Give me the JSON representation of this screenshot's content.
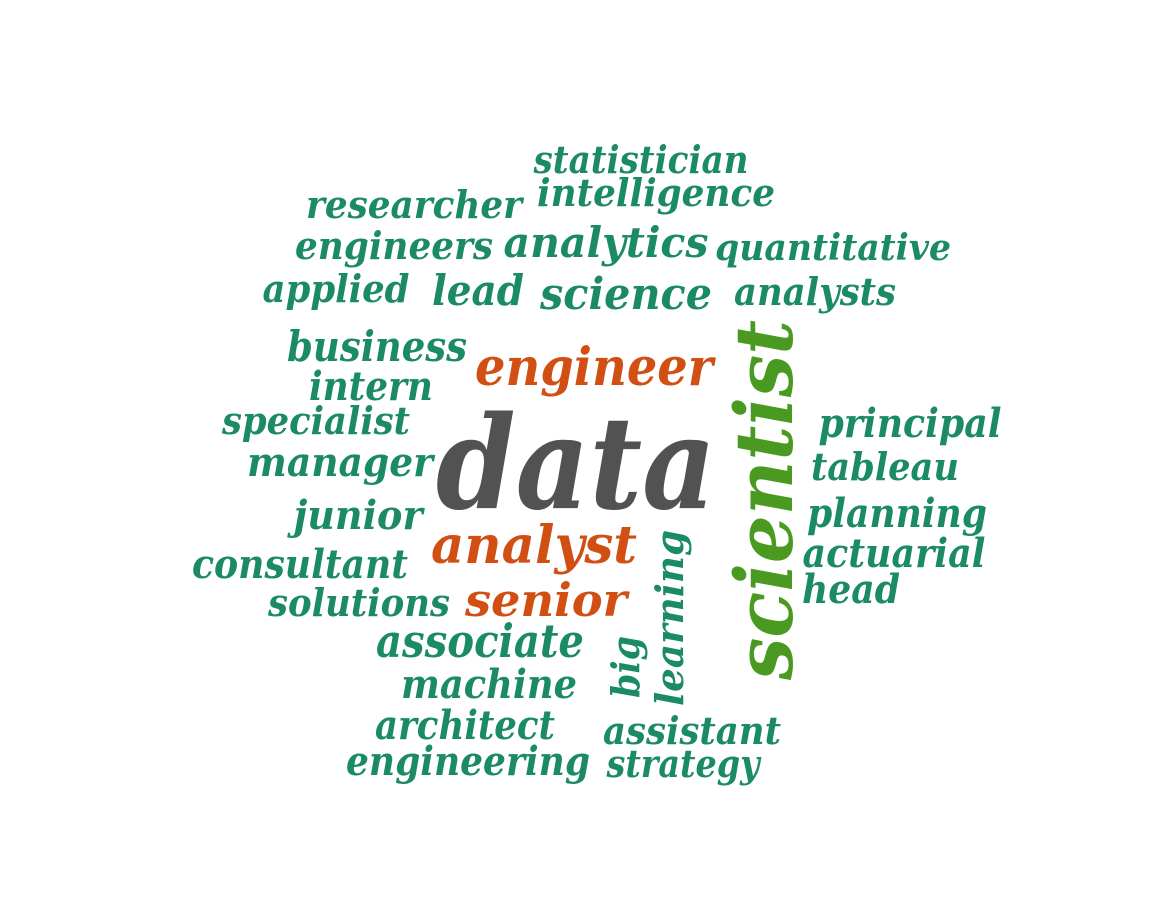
{
  "word_cloud": {
    "colors": {
      "teal": "#1b8a67",
      "orange": "#d14f13",
      "gray": "#525252",
      "green": "#4a9a22"
    },
    "words": [
      {
        "text": "data",
        "color": "gray"
      },
      {
        "text": "scientist",
        "color": "green"
      },
      {
        "text": "engineer",
        "color": "orange"
      },
      {
        "text": "analyst",
        "color": "orange"
      },
      {
        "text": "senior",
        "color": "orange"
      },
      {
        "text": "statistician",
        "color": "teal"
      },
      {
        "text": "intelligence",
        "color": "teal"
      },
      {
        "text": "researcher",
        "color": "teal"
      },
      {
        "text": "engineers",
        "color": "teal"
      },
      {
        "text": "analytics",
        "color": "teal"
      },
      {
        "text": "quantitative",
        "color": "teal"
      },
      {
        "text": "applied",
        "color": "teal"
      },
      {
        "text": "lead",
        "color": "teal"
      },
      {
        "text": "science",
        "color": "teal"
      },
      {
        "text": "analysts",
        "color": "teal"
      },
      {
        "text": "business",
        "color": "teal"
      },
      {
        "text": "intern",
        "color": "teal"
      },
      {
        "text": "specialist",
        "color": "teal"
      },
      {
        "text": "principal",
        "color": "teal"
      },
      {
        "text": "manager",
        "color": "teal"
      },
      {
        "text": "tableau",
        "color": "teal"
      },
      {
        "text": "junior",
        "color": "teal"
      },
      {
        "text": "planning",
        "color": "teal"
      },
      {
        "text": "consultant",
        "color": "teal"
      },
      {
        "text": "actuarial",
        "color": "teal"
      },
      {
        "text": "head",
        "color": "teal"
      },
      {
        "text": "solutions",
        "color": "teal"
      },
      {
        "text": "associate",
        "color": "teal"
      },
      {
        "text": "learning",
        "color": "teal"
      },
      {
        "text": "machine",
        "color": "teal"
      },
      {
        "text": "big",
        "color": "teal"
      },
      {
        "text": "architect",
        "color": "teal"
      },
      {
        "text": "assistant",
        "color": "teal"
      },
      {
        "text": "engineering",
        "color": "teal"
      },
      {
        "text": "strategy",
        "color": "teal"
      }
    ]
  }
}
